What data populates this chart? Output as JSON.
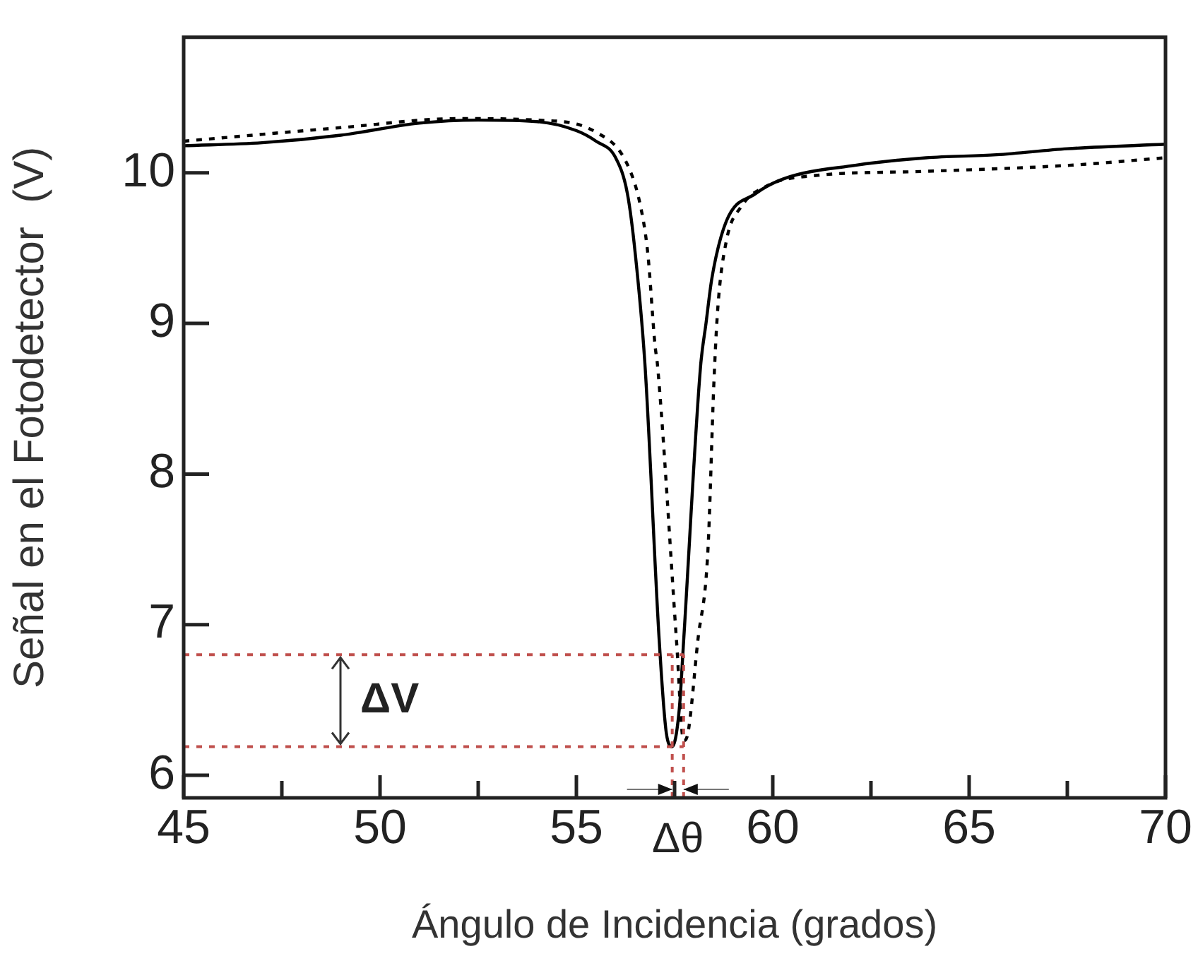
{
  "chart_data": {
    "type": "line",
    "xlabel": "Ángulo de Incidencia (grados)",
    "ylabel": "Señal en el Fotodetector  (V)",
    "xlim": [
      45,
      70
    ],
    "xticks": [
      45,
      {
        "value": 47.5,
        "label": null
      },
      50,
      {
        "value": 52.5,
        "label": null
      },
      55,
      {
        "value": 57.5,
        "label": null
      },
      60,
      {
        "value": 62.5,
        "label": null
      },
      65,
      {
        "value": 67.5,
        "label": null
      },
      70
    ],
    "ylim": [
      5.85,
      10.9
    ],
    "yticks": [
      6,
      7,
      8,
      9,
      10
    ],
    "grid": false,
    "legend": false,
    "marker": "none",
    "series": [
      {
        "color": "#000000",
        "line_style": "solid",
        "x": [
          45,
          47,
          49,
          51,
          52.5,
          54,
          55,
          55.5,
          56,
          56.3,
          56.5,
          56.75,
          57.11,
          57.29,
          57.44,
          57.62,
          57.73,
          58.16,
          58.3,
          58.45,
          58.82,
          59.55,
          60.27,
          62.1,
          63.9,
          65.7,
          67.5,
          70
        ],
        "values": [
          10.18,
          10.2,
          10.25,
          10.33,
          10.35,
          10.34,
          10.28,
          10.21,
          10.1,
          9.86,
          9.46,
          8.71,
          6.89,
          6.28,
          6.19,
          6.44,
          6.89,
          8.71,
          9.0,
          9.3,
          9.68,
          9.86,
          9.96,
          10.05,
          10.1,
          10.12,
          10.16,
          10.19
        ]
      },
      {
        "color": "#000000",
        "line_style": "dotted",
        "x": [
          45,
          49,
          52,
          54,
          55.5,
          56.27,
          56.64,
          56.82,
          57.0,
          57.07,
          57.55,
          57.73,
          57.84,
          58.09,
          58.35,
          58.5,
          58.6,
          58.82,
          59.18,
          59.91,
          61,
          63.91,
          67.55,
          70
        ],
        "values": [
          10.21,
          10.3,
          10.36,
          10.35,
          10.27,
          10.07,
          9.77,
          9.46,
          8.86,
          8.71,
          6.89,
          6.23,
          6.28,
          6.89,
          7.5,
          8.6,
          9.1,
          9.55,
          9.77,
          9.92,
          9.98,
          10.01,
          10.05,
          10.1
        ]
      }
    ],
    "ref_lines": [
      {
        "axis": "y",
        "value": 6.8,
        "color": "#c0504d",
        "line_style": "dotted"
      },
      {
        "axis": "y",
        "value": 6.19,
        "color": "#c0504d",
        "line_style": "dotted"
      },
      {
        "axis": "x",
        "value": 57.44,
        "color": "#c0504d",
        "line_style": "dotted"
      },
      {
        "axis": "x",
        "value": 57.73,
        "color": "#c0504d",
        "line_style": "dotted"
      }
    ],
    "annotations": [
      "ΔV",
      "Δθ"
    ]
  }
}
